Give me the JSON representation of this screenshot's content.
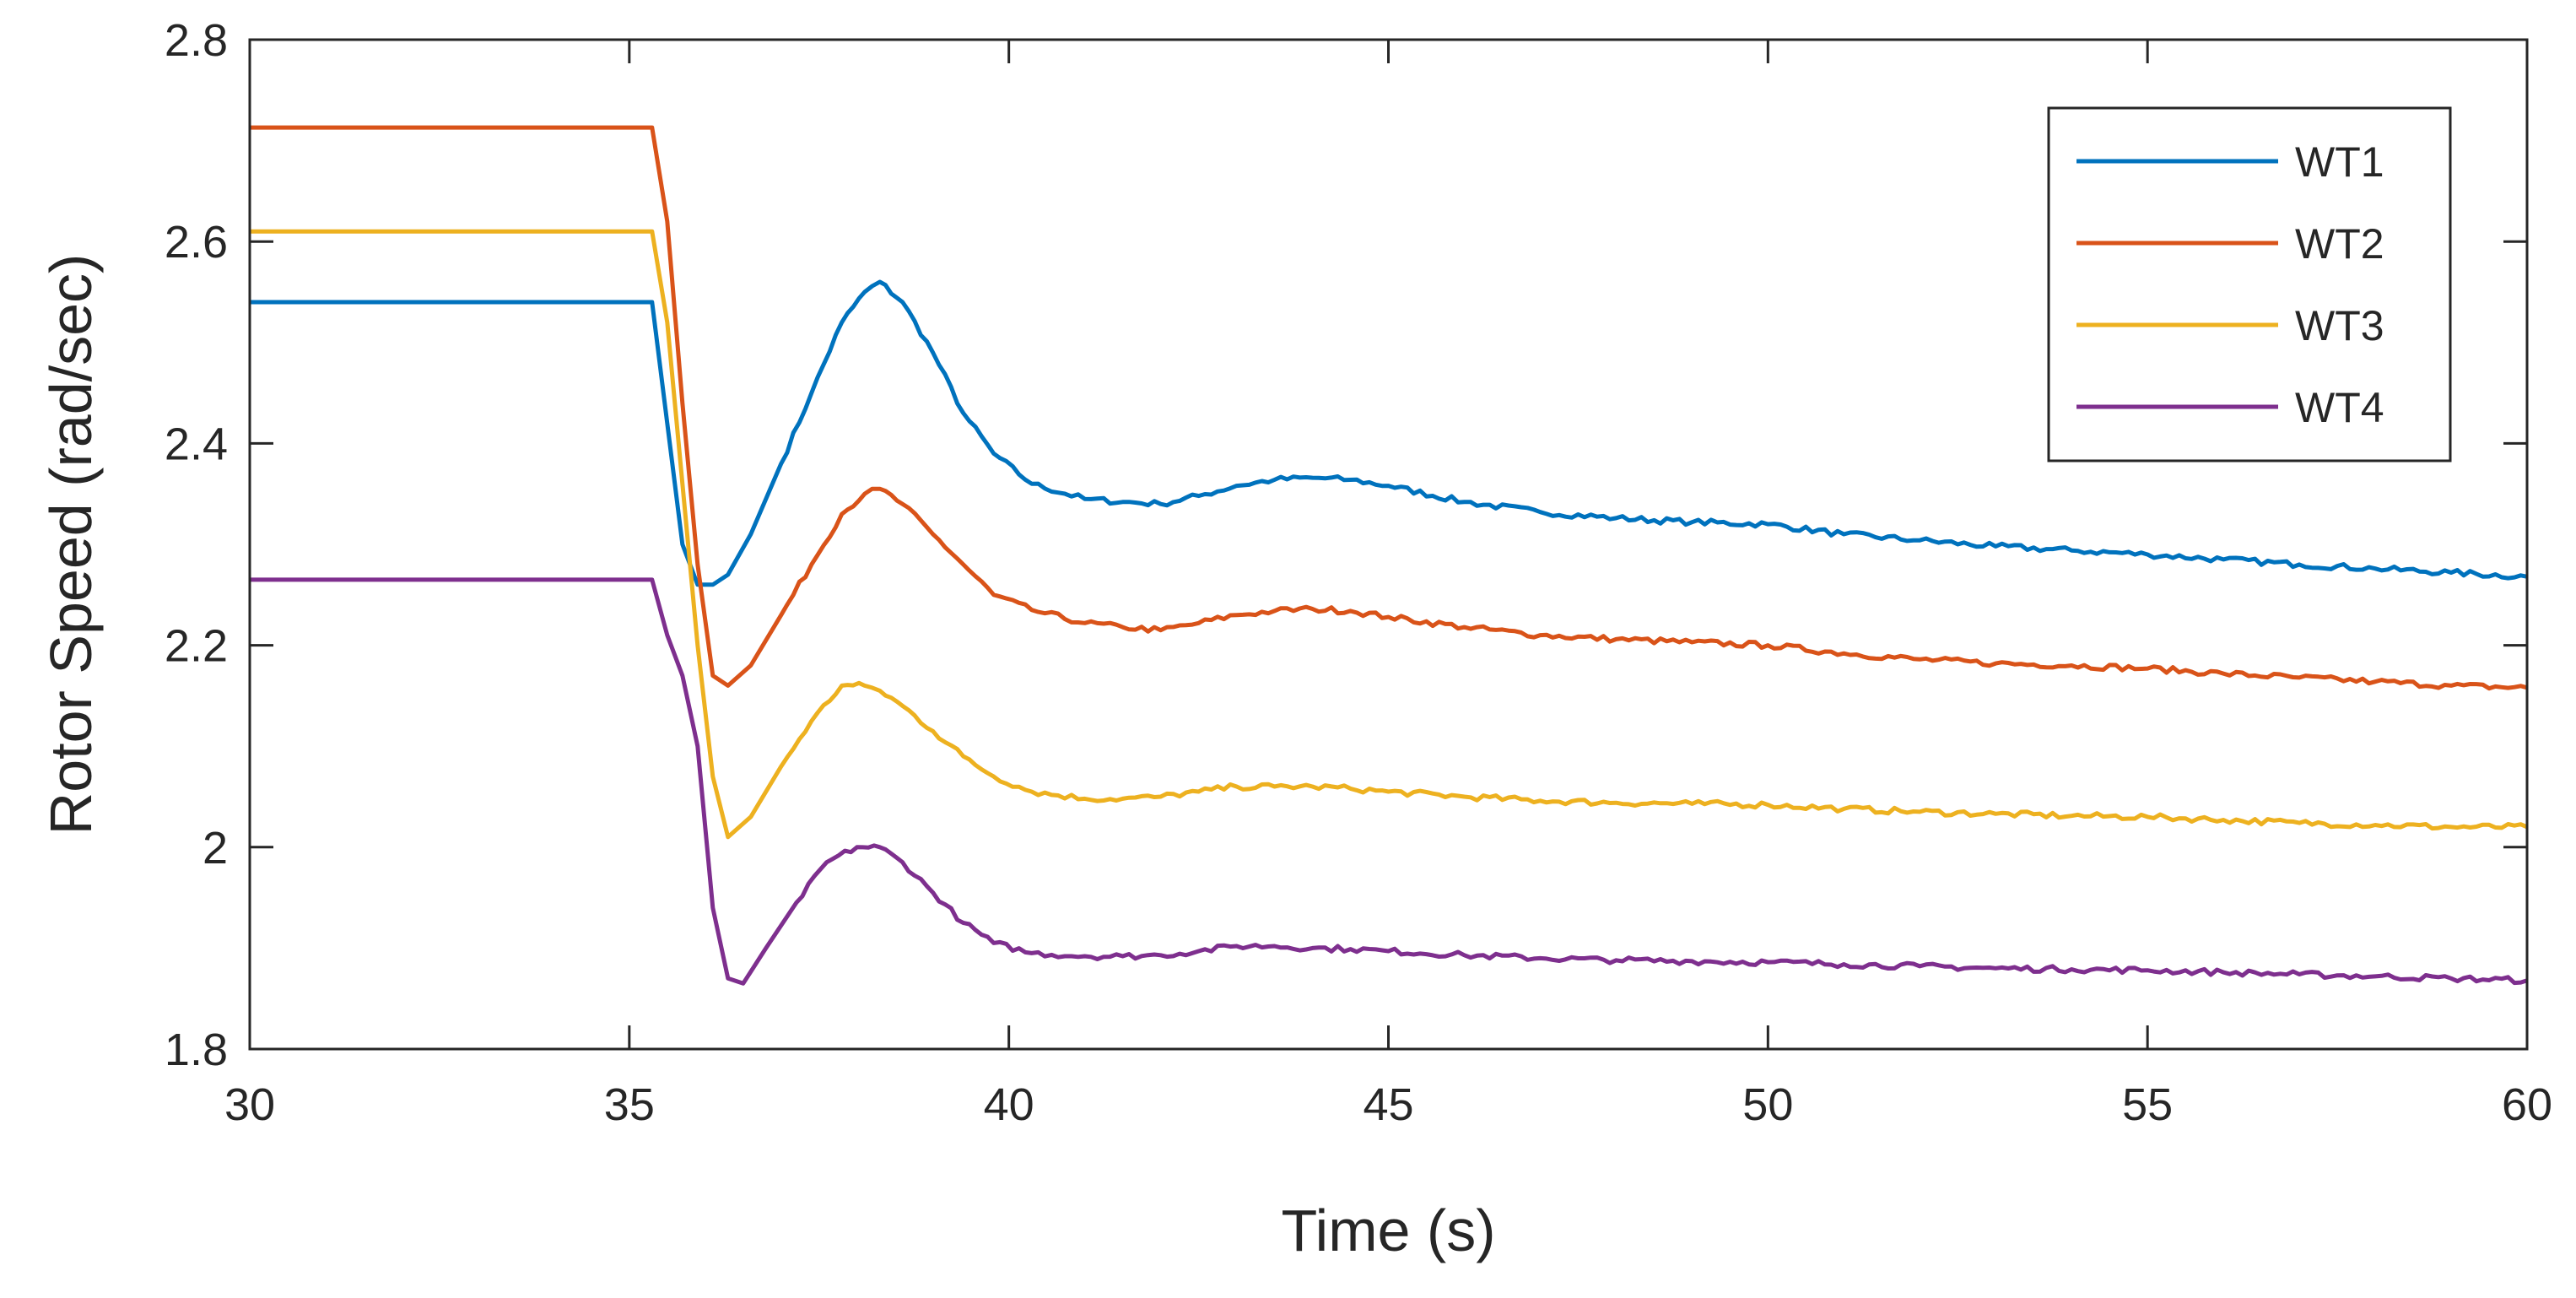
{
  "chart_data": {
    "type": "line",
    "title": "",
    "xlabel": "Time (s)",
    "ylabel": "Rotor Speed (rad/sec)",
    "xlim": [
      30,
      60
    ],
    "ylim": [
      1.8,
      2.8
    ],
    "xticks": [
      "30",
      "35",
      "40",
      "45",
      "50",
      "55",
      "60"
    ],
    "yticks": [
      "1.8",
      "2",
      "2.2",
      "2.4",
      "2.6",
      "2.8"
    ],
    "grid": false,
    "legend_position": "top-right",
    "series": [
      {
        "name": "WT1",
        "color": "#0072BD",
        "x": [
          30,
          35.3,
          35.5,
          35.7,
          35.9,
          36.1,
          36.3,
          36.6,
          37.0,
          37.4,
          37.8,
          38.1,
          38.3,
          38.6,
          39.0,
          39.4,
          39.8,
          40.3,
          41.0,
          41.5,
          42.0,
          42.5,
          43.0,
          43.5,
          44.0,
          44.5,
          45.0,
          46.0,
          47.0,
          48.0,
          49.0,
          50.0,
          51.0,
          52.0,
          53.0,
          54.0,
          55.0,
          56.0,
          57.0,
          58.0,
          59.0,
          60.0
        ],
        "y": [
          2.54,
          2.54,
          2.42,
          2.3,
          2.26,
          2.26,
          2.27,
          2.31,
          2.38,
          2.45,
          2.52,
          2.55,
          2.56,
          2.54,
          2.49,
          2.43,
          2.39,
          2.36,
          2.345,
          2.342,
          2.34,
          2.348,
          2.358,
          2.364,
          2.366,
          2.364,
          2.358,
          2.342,
          2.332,
          2.326,
          2.322,
          2.32,
          2.31,
          2.304,
          2.298,
          2.294,
          2.29,
          2.285,
          2.28,
          2.276,
          2.272,
          2.268
        ]
      },
      {
        "name": "WT2",
        "color": "#D95319",
        "x": [
          30,
          35.3,
          35.5,
          35.7,
          35.9,
          36.1,
          36.3,
          36.6,
          37.0,
          37.4,
          37.8,
          38.1,
          38.3,
          38.6,
          39.0,
          39.4,
          39.8,
          40.3,
          41.0,
          41.5,
          42.0,
          42.5,
          43.0,
          43.5,
          44.0,
          44.5,
          45.0,
          46.0,
          47.0,
          48.0,
          49.0,
          50.0,
          51.0,
          52.0,
          53.0,
          54.0,
          55.0,
          56.0,
          57.0,
          58.0,
          59.0,
          60.0
        ],
        "y": [
          2.713,
          2.713,
          2.62,
          2.44,
          2.28,
          2.17,
          2.16,
          2.18,
          2.23,
          2.28,
          2.33,
          2.35,
          2.355,
          2.34,
          2.31,
          2.28,
          2.25,
          2.235,
          2.222,
          2.218,
          2.215,
          2.222,
          2.23,
          2.234,
          2.236,
          2.234,
          2.228,
          2.218,
          2.21,
          2.206,
          2.203,
          2.2,
          2.192,
          2.186,
          2.182,
          2.18,
          2.177,
          2.172,
          2.168,
          2.164,
          2.16,
          2.158
        ]
      },
      {
        "name": "WT3",
        "color": "#EDB120",
        "x": [
          30,
          35.3,
          35.5,
          35.7,
          35.9,
          36.1,
          36.3,
          36.6,
          37.0,
          37.4,
          37.8,
          38.1,
          38.3,
          38.6,
          39.0,
          39.4,
          39.8,
          40.3,
          41.0,
          41.5,
          42.0,
          42.5,
          43.0,
          43.5,
          44.0,
          44.5,
          45.0,
          46.0,
          47.0,
          48.0,
          49.0,
          50.0,
          51.0,
          52.0,
          53.0,
          54.0,
          55.0,
          56.0,
          57.0,
          58.0,
          59.0,
          60.0
        ],
        "y": [
          2.61,
          2.61,
          2.52,
          2.36,
          2.2,
          2.07,
          2.01,
          2.03,
          2.08,
          2.125,
          2.16,
          2.16,
          2.155,
          2.14,
          2.115,
          2.09,
          2.07,
          2.055,
          2.048,
          2.048,
          2.05,
          2.055,
          2.06,
          2.06,
          2.06,
          2.058,
          2.055,
          2.05,
          2.046,
          2.044,
          2.043,
          2.042,
          2.038,
          2.035,
          2.033,
          2.031,
          2.03,
          2.027,
          2.024,
          2.022,
          2.02,
          2.02
        ]
      },
      {
        "name": "WT4",
        "color": "#7E2F8E",
        "x": [
          30,
          35.3,
          35.5,
          35.7,
          35.9,
          36.1,
          36.3,
          36.5,
          36.8,
          37.2,
          37.6,
          38.0,
          38.3,
          38.6,
          39.0,
          39.4,
          39.8,
          40.3,
          41.0,
          41.5,
          42.0,
          42.5,
          43.0,
          43.5,
          44.0,
          44.5,
          45.0,
          46.0,
          47.0,
          48.0,
          49.0,
          50.0,
          51.0,
          52.0,
          53.0,
          54.0,
          55.0,
          56.0,
          57.0,
          58.0,
          59.0,
          60.0
        ],
        "y": [
          2.265,
          2.265,
          2.21,
          2.17,
          2.1,
          1.94,
          1.87,
          1.865,
          1.9,
          1.945,
          1.985,
          2.0,
          2.0,
          1.985,
          1.955,
          1.925,
          1.905,
          1.895,
          1.892,
          1.892,
          1.893,
          1.897,
          1.902,
          1.902,
          1.9,
          1.899,
          1.897,
          1.893,
          1.89,
          1.888,
          1.887,
          1.886,
          1.884,
          1.882,
          1.88,
          1.879,
          1.878,
          1.876,
          1.874,
          1.872,
          1.87,
          1.868
        ]
      }
    ]
  }
}
